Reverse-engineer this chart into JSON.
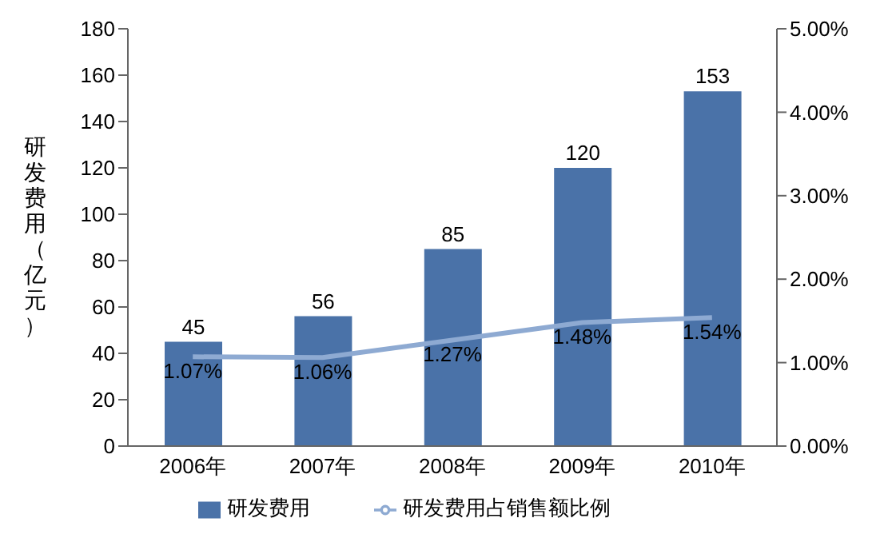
{
  "chart_data": {
    "type": "bar",
    "ylabel": "研发费用（亿元）",
    "categories": [
      "2006年",
      "2007年",
      "2008年",
      "2009年",
      "2010年"
    ],
    "series": [
      {
        "name": "研发费用",
        "color": "#4a72a8",
        "values": [
          45,
          56,
          85,
          120,
          153
        ]
      },
      {
        "name": "研发费用占销售额比例",
        "type": "line",
        "axis": "y2",
        "color": "#8eaad2",
        "values": [
          1.07,
          1.06,
          1.27,
          1.48,
          1.54
        ],
        "value_labels": [
          "1.07%",
          "1.06%",
          "1.27%",
          "1.48%",
          "1.54%"
        ]
      }
    ],
    "data_labels": true,
    "ylim": [
      0,
      180
    ],
    "yticks": [
      0,
      20,
      40,
      60,
      80,
      100,
      120,
      140,
      160,
      180
    ],
    "y2lim": [
      0,
      5
    ],
    "y2ticks": [
      {
        "value": 0,
        "label": "0.00%"
      },
      {
        "value": 1,
        "label": "1.00%"
      },
      {
        "value": 2,
        "label": "2.00%"
      },
      {
        "value": 3,
        "label": "3.00%"
      },
      {
        "value": 4,
        "label": "4.00%"
      },
      {
        "value": 5,
        "label": "5.00%"
      }
    ],
    "marker": "none",
    "legend": "bottom",
    "grid": false
  }
}
